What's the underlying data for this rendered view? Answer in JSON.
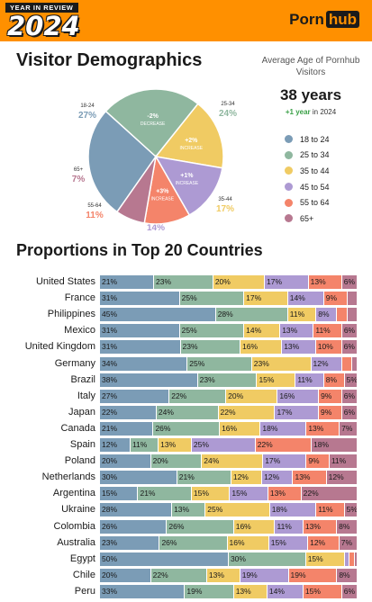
{
  "header": {
    "badge_small": "YEAR IN REVIEW",
    "year": "2024",
    "logo_part1": "Porn",
    "logo_part2": "hub"
  },
  "demographics": {
    "title": "Visitor Demographics",
    "avg_title": "Average Age of Pornhub Visitors",
    "avg_value": "38 years",
    "avg_change_highlight": "+1 year",
    "avg_change_rest": "in 2024"
  },
  "colors": {
    "18-24": "#7b9cb6",
    "25-34": "#8fb79f",
    "35-44": "#f0cb63",
    "45-54": "#ad9ad3",
    "55-64": "#f4846a",
    "65+": "#b77890",
    "banner": "#ff9000"
  },
  "proportions_title": "Proportions in Top 20 Countries",
  "chart_data": [
    {
      "type": "pie",
      "title": "Visitor Demographics",
      "slices": [
        {
          "label": "18-24",
          "value": 27,
          "value_label": "27%",
          "change": "",
          "change_word": ""
        },
        {
          "label": "25-34",
          "value": 24,
          "value_label": "24%",
          "change": "-2%",
          "change_word": "DECREASE"
        },
        {
          "label": "35-44",
          "value": 17,
          "value_label": "17%",
          "change": "+2%",
          "change_word": "INCREASE"
        },
        {
          "label": "45-54",
          "value": 14,
          "value_label": "14%",
          "change": "+1%",
          "change_word": "INCREASE"
        },
        {
          "label": "55-64",
          "value": 11,
          "value_label": "11%",
          "change": "+3%",
          "change_word": "INCREASE"
        },
        {
          "label": "65+",
          "value": 7,
          "value_label": "7%",
          "change": "",
          "change_word": ""
        }
      ],
      "legend": [
        "18 to 24",
        "25 to 34",
        "35 to 44",
        "45 to 54",
        "55 to 64",
        "65+"
      ],
      "legend_position": "right"
    },
    {
      "type": "bar",
      "stacked": true,
      "orientation": "horizontal",
      "title": "Proportions in Top 20 Countries",
      "series_order": [
        "18-24",
        "25-34",
        "35-44",
        "45-54",
        "55-64",
        "65+"
      ],
      "rows": [
        {
          "country": "United States",
          "values": [
            21,
            23,
            20,
            17,
            13,
            6
          ]
        },
        {
          "country": "France",
          "values": [
            31,
            25,
            17,
            14,
            9,
            4
          ]
        },
        {
          "country": "Philippines",
          "values": [
            45,
            28,
            11,
            8,
            4,
            4
          ]
        },
        {
          "country": "Mexico",
          "values": [
            31,
            25,
            14,
            13,
            11,
            6
          ]
        },
        {
          "country": "United Kingdom",
          "values": [
            31,
            23,
            16,
            13,
            10,
            6
          ]
        },
        {
          "country": "Germany",
          "values": [
            34,
            25,
            23,
            12,
            4,
            2
          ]
        },
        {
          "country": "Brazil",
          "values": [
            38,
            23,
            15,
            11,
            8,
            5
          ]
        },
        {
          "country": "Italy",
          "values": [
            27,
            22,
            20,
            16,
            9,
            6
          ]
        },
        {
          "country": "Japan",
          "values": [
            22,
            24,
            22,
            17,
            9,
            6
          ]
        },
        {
          "country": "Canada",
          "values": [
            21,
            26,
            16,
            18,
            13,
            7
          ]
        },
        {
          "country": "Spain",
          "values": [
            12,
            11,
            13,
            25,
            22,
            18
          ]
        },
        {
          "country": "Poland",
          "values": [
            20,
            20,
            24,
            17,
            9,
            11
          ]
        },
        {
          "country": "Netherlands",
          "values": [
            30,
            21,
            12,
            12,
            13,
            12
          ]
        },
        {
          "country": "Argentina",
          "values": [
            15,
            21,
            15,
            15,
            13,
            22
          ]
        },
        {
          "country": "Ukraine",
          "values": [
            28,
            13,
            25,
            18,
            11,
            5
          ]
        },
        {
          "country": "Colombia",
          "values": [
            26,
            26,
            16,
            11,
            13,
            8
          ]
        },
        {
          "country": "Australia",
          "values": [
            23,
            26,
            16,
            15,
            12,
            7
          ]
        },
        {
          "country": "Egypt",
          "values": [
            50,
            30,
            15,
            2,
            2,
            1
          ]
        },
        {
          "country": "Chile",
          "values": [
            20,
            22,
            13,
            19,
            19,
            8
          ]
        },
        {
          "country": "Peru",
          "values": [
            33,
            19,
            13,
            14,
            15,
            6
          ]
        }
      ]
    }
  ]
}
